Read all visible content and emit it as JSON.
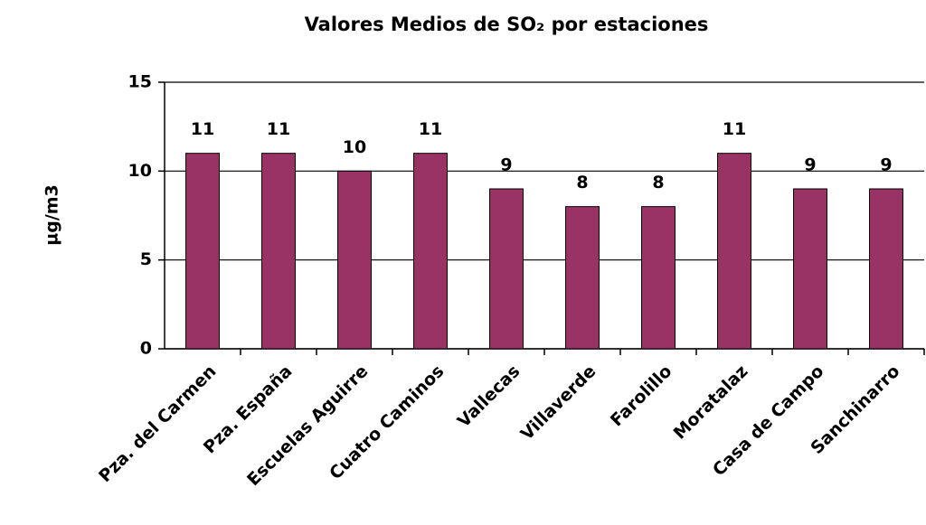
{
  "chart_data": {
    "type": "bar",
    "title": "Valores Medios de SO₂ por estaciones",
    "y_label": "µg/m3",
    "categories": [
      "Pza. del Carmen",
      "Pza. España",
      "Escuelas Aguirre",
      "Cuatro Caminos",
      "Vallecas",
      "Villaverde",
      "Farolillo",
      "Moratalaz",
      "Casa de Campo",
      "Sanchinarro"
    ],
    "values": [
      11,
      11,
      10,
      11,
      9,
      8,
      8,
      11,
      9,
      9
    ],
    "color": "#993366",
    "ylim": [
      0,
      15
    ],
    "yticks": [
      0,
      5,
      10,
      15
    ],
    "grid": true
  }
}
